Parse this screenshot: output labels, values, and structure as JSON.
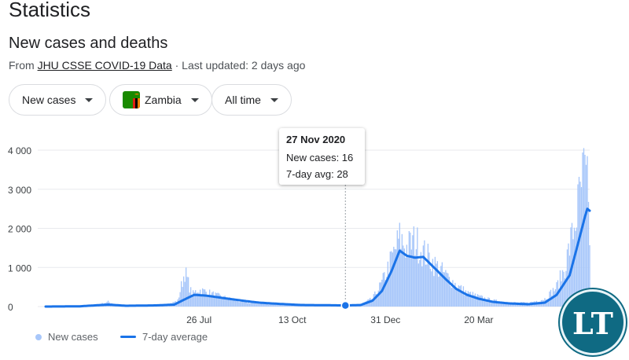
{
  "page": {
    "title": "Statistics"
  },
  "section": {
    "title": "New cases and deaths",
    "source_prefix": "From ",
    "source_link": "JHU CSSE COVID-19 Data",
    "updated": " · Last updated: 2 days ago"
  },
  "filters": {
    "metric": "New cases",
    "country": "Zambia",
    "range": "All time"
  },
  "tooltip": {
    "date": "27 Nov 2020",
    "new_cases": "New cases: 16",
    "avg": "7-day avg: 28"
  },
  "legend": {
    "bars": "New cases",
    "line": "7-day average"
  },
  "logo": {
    "text": "LT"
  },
  "colors": {
    "bars": "#a8c7fa",
    "line": "#1a73e8",
    "grid": "#e8eaed",
    "logo": "#0f6a83"
  },
  "chart_data": {
    "type": "bar",
    "title": "",
    "xlabel": "",
    "ylabel": "",
    "ylim": [
      0,
      4000
    ],
    "y_ticks": [
      0,
      1000,
      2000,
      3000,
      4000
    ],
    "y_tick_labels": [
      "0",
      "1 000",
      "2 000",
      "3 000",
      "4 000"
    ],
    "x_ticks": [
      {
        "date": "2020-07-26",
        "label": "26 Jul"
      },
      {
        "date": "2020-10-13",
        "label": "13 Oct"
      },
      {
        "date": "2020-12-31",
        "label": "31 Dec"
      },
      {
        "date": "2021-03-20",
        "label": "20 Mar"
      }
    ],
    "x_range": [
      "2020-03-18",
      "2021-06-22"
    ],
    "highlight": {
      "date": "2020-11-27",
      "new_cases": 16,
      "avg": 28
    },
    "series": [
      {
        "name": "New cases",
        "type": "bar",
        "points": [
          [
            "2020-03-18",
            0
          ],
          [
            "2020-04-15",
            12
          ],
          [
            "2020-05-01",
            40
          ],
          [
            "2020-05-10",
            120
          ],
          [
            "2020-05-20",
            20
          ],
          [
            "2020-06-10",
            30
          ],
          [
            "2020-06-30",
            60
          ],
          [
            "2020-07-08",
            150
          ],
          [
            "2020-07-14",
            900
          ],
          [
            "2020-07-20",
            300
          ],
          [
            "2020-07-25",
            430
          ],
          [
            "2020-08-01",
            380
          ],
          [
            "2020-08-10",
            280
          ],
          [
            "2020-08-20",
            200
          ],
          [
            "2020-09-01",
            120
          ],
          [
            "2020-09-15",
            80
          ],
          [
            "2020-10-01",
            60
          ],
          [
            "2020-10-15",
            40
          ],
          [
            "2020-11-01",
            50
          ],
          [
            "2020-11-27",
            16
          ],
          [
            "2020-12-10",
            60
          ],
          [
            "2020-12-20",
            200
          ],
          [
            "2020-12-28",
            600
          ],
          [
            "2021-01-05",
            1200
          ],
          [
            "2021-01-12",
            1750
          ],
          [
            "2021-01-18",
            1500
          ],
          [
            "2021-01-25",
            1700
          ],
          [
            "2021-02-01",
            1400
          ],
          [
            "2021-02-10",
            1100
          ],
          [
            "2021-02-20",
            800
          ],
          [
            "2021-03-01",
            550
          ],
          [
            "2021-03-10",
            350
          ],
          [
            "2021-03-20",
            250
          ],
          [
            "2021-04-01",
            150
          ],
          [
            "2021-04-15",
            100
          ],
          [
            "2021-05-01",
            90
          ],
          [
            "2021-05-15",
            200
          ],
          [
            "2021-05-25",
            500
          ],
          [
            "2021-06-01",
            1000
          ],
          [
            "2021-06-10",
            2200
          ],
          [
            "2021-06-17",
            3400
          ],
          [
            "2021-06-20",
            3000
          ],
          [
            "2021-06-22",
            1800
          ]
        ]
      },
      {
        "name": "7-day average",
        "type": "line",
        "points": [
          [
            "2020-03-18",
            0
          ],
          [
            "2020-04-15",
            5
          ],
          [
            "2020-05-10",
            50
          ],
          [
            "2020-05-25",
            20
          ],
          [
            "2020-06-20",
            30
          ],
          [
            "2020-07-05",
            50
          ],
          [
            "2020-07-15",
            200
          ],
          [
            "2020-07-22",
            300
          ],
          [
            "2020-08-01",
            280
          ],
          [
            "2020-08-15",
            220
          ],
          [
            "2020-09-01",
            150
          ],
          [
            "2020-09-15",
            100
          ],
          [
            "2020-10-01",
            70
          ],
          [
            "2020-10-20",
            40
          ],
          [
            "2020-11-10",
            35
          ],
          [
            "2020-11-27",
            28
          ],
          [
            "2020-12-10",
            40
          ],
          [
            "2020-12-20",
            150
          ],
          [
            "2020-12-28",
            400
          ],
          [
            "2021-01-05",
            900
          ],
          [
            "2021-01-12",
            1430
          ],
          [
            "2021-01-18",
            1300
          ],
          [
            "2021-01-25",
            1250
          ],
          [
            "2021-02-01",
            1270
          ],
          [
            "2021-02-10",
            1000
          ],
          [
            "2021-02-20",
            700
          ],
          [
            "2021-03-01",
            450
          ],
          [
            "2021-03-10",
            300
          ],
          [
            "2021-03-20",
            200
          ],
          [
            "2021-04-01",
            120
          ],
          [
            "2021-04-15",
            80
          ],
          [
            "2021-05-01",
            60
          ],
          [
            "2021-05-15",
            100
          ],
          [
            "2021-05-25",
            300
          ],
          [
            "2021-06-05",
            800
          ],
          [
            "2021-06-12",
            1600
          ],
          [
            "2021-06-18",
            2300
          ],
          [
            "2021-06-20",
            2500
          ],
          [
            "2021-06-22",
            2450
          ]
        ]
      }
    ]
  }
}
